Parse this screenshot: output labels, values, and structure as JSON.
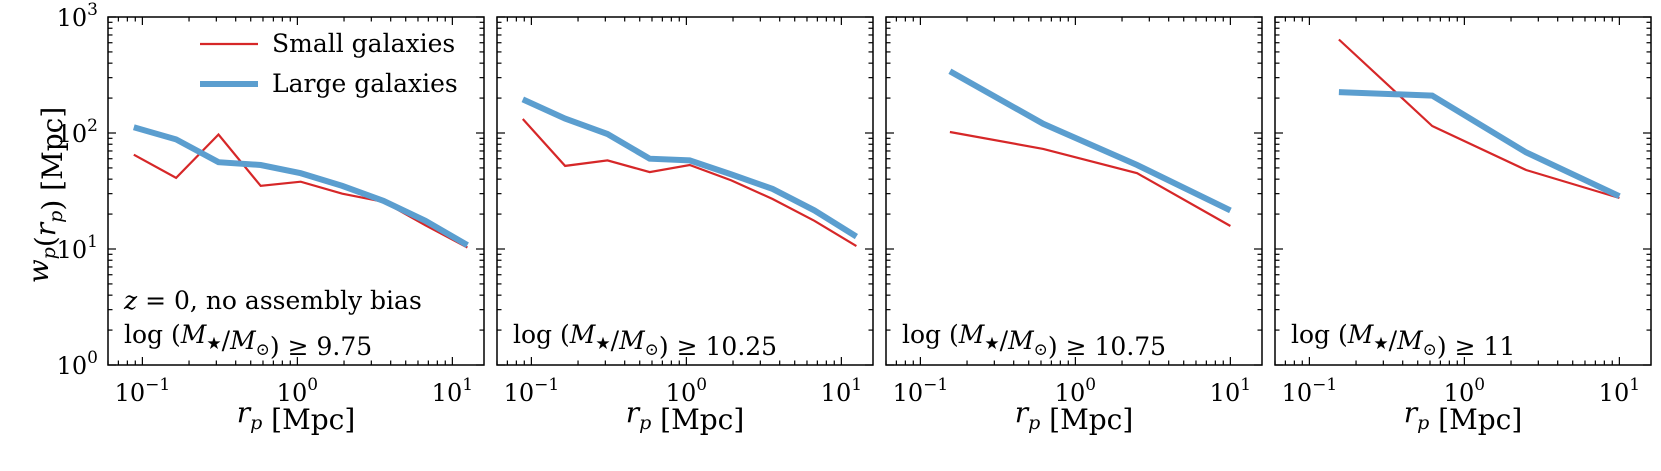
{
  "chart_data": {
    "type": "line",
    "xscale": "log",
    "yscale": "log",
    "ylabel": "w_p(r_p)  [Mpc]",
    "legend": {
      "placement": "top-right of first panel",
      "entries": [
        "Small galaxies",
        "Large galaxies"
      ]
    },
    "colors": {
      "small": "#d62728",
      "large": "#5b9ecf"
    },
    "panels": [
      {
        "xlabel": "r_p  [Mpc]",
        "annotation": [
          "z = 0, no assembly bias",
          "log (M★/M⊙) ≥ 9.75"
        ],
        "xlim": [
          0.06,
          16
        ],
        "ylim": [
          1,
          1000
        ],
        "x_ticks": [
          "10−1",
          "100",
          "101"
        ],
        "y_ticks": [
          "100",
          "101",
          "102",
          "103"
        ],
        "series": [
          {
            "name": "Small galaxies",
            "x": [
              0.088,
              0.165,
              0.31,
              0.58,
              1.05,
              1.95,
              3.6,
              6.7,
              12.5
            ],
            "y": [
              65,
              41,
              97,
              35,
              38,
              30,
              25.5,
              16,
              10.3
            ]
          },
          {
            "name": "Large galaxies",
            "x": [
              0.088,
              0.165,
              0.31,
              0.58,
              1.05,
              1.95,
              3.6,
              6.7,
              12.5
            ],
            "y": [
              112,
              88,
              56,
              53,
              45,
              35,
              26,
              17.5,
              10.8
            ]
          }
        ]
      },
      {
        "xlabel": "r_p  [Mpc]",
        "annotation": [
          "log (M★/M⊙) ≥ 10.25"
        ],
        "xlim": [
          0.06,
          16
        ],
        "ylim": [
          1,
          1000
        ],
        "x_ticks": [
          "10−1",
          "100",
          "101"
        ],
        "y_ticks": [],
        "series": [
          {
            "name": "Small galaxies",
            "x": [
              0.088,
              0.165,
              0.31,
              0.58,
              1.05,
              1.95,
              3.6,
              6.7,
              12.5
            ],
            "y": [
              132,
              52,
              58,
              46,
              53,
              39,
              27,
              17.5,
              10.6
            ]
          },
          {
            "name": "Large galaxies",
            "x": [
              0.088,
              0.165,
              0.31,
              0.58,
              1.05,
              1.95,
              3.6,
              6.7,
              12.5
            ],
            "y": [
              195,
              133,
              98,
              60,
              58,
              44,
              33,
              21.5,
              12.8
            ]
          }
        ]
      },
      {
        "xlabel": "r_p  [Mpc]",
        "annotation": [
          "log (M★/M⊙) ≥ 10.75"
        ],
        "xlim": [
          0.06,
          16
        ],
        "ylim": [
          1,
          1000
        ],
        "x_ticks": [
          "10−1",
          "100",
          "101"
        ],
        "y_ticks": [],
        "series": [
          {
            "name": "Small galaxies",
            "x": [
              0.155,
              0.62,
              2.5,
              10
            ],
            "y": [
              102,
              73,
              45,
              15.8
            ]
          },
          {
            "name": "Large galaxies",
            "x": [
              0.155,
              0.62,
              2.5,
              10
            ],
            "y": [
              340,
              120,
              53,
              21.5
            ]
          }
        ]
      },
      {
        "xlabel": "r_p  [Mpc]",
        "annotation": [
          "log (M★/M⊙) ≥ 11"
        ],
        "xlim": [
          0.06,
          16
        ],
        "ylim": [
          1,
          1000
        ],
        "x_ticks": [
          "10−1",
          "100",
          "101"
        ],
        "y_ticks": [],
        "series": [
          {
            "name": "Small galaxies",
            "x": [
              0.155,
              0.62,
              2.5,
              10
            ],
            "y": [
              640,
              115,
              48,
              27.5
            ]
          },
          {
            "name": "Large galaxies",
            "x": [
              0.155,
              0.62,
              2.5,
              10
            ],
            "y": [
              225,
              210,
              68,
              28.5
            ]
          }
        ]
      }
    ]
  }
}
